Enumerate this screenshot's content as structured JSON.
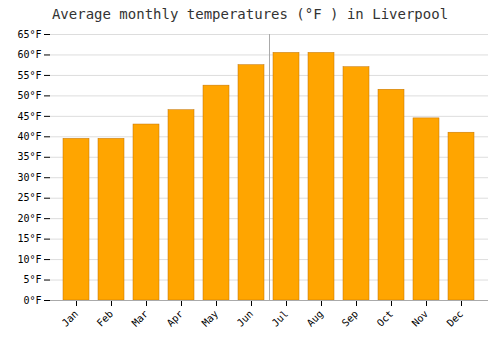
{
  "chart_data": {
    "type": "bar",
    "title": "Average monthly temperatures (°F ) in Liverpool",
    "categories": [
      "Jan",
      "Feb",
      "Mar",
      "Apr",
      "May",
      "Jun",
      "Jul",
      "Aug",
      "Sep",
      "Oct",
      "Nov",
      "Dec"
    ],
    "values": [
      39.5,
      39.5,
      43.0,
      46.5,
      52.5,
      57.5,
      60.5,
      60.5,
      57.0,
      51.5,
      44.5,
      41.0
    ],
    "color": "#FFA500",
    "ylim": [
      0,
      65
    ],
    "yticks": [
      {
        "value": 0,
        "label": "0°F"
      },
      {
        "value": 5,
        "label": "5°F"
      },
      {
        "value": 10,
        "label": "10°F"
      },
      {
        "value": 15,
        "label": "15°F"
      },
      {
        "value": 20,
        "label": "20°F"
      },
      {
        "value": 25,
        "label": "25°F"
      },
      {
        "value": 30,
        "label": "30°F"
      },
      {
        "value": 35,
        "label": "35°F"
      },
      {
        "value": 40,
        "label": "40°F"
      },
      {
        "value": 45,
        "label": "45°F"
      },
      {
        "value": 50,
        "label": "50°F"
      },
      {
        "value": 55,
        "label": "55°F"
      },
      {
        "value": 60,
        "label": "60°F"
      },
      {
        "value": 65,
        "label": "65°F"
      }
    ],
    "grid": true
  }
}
